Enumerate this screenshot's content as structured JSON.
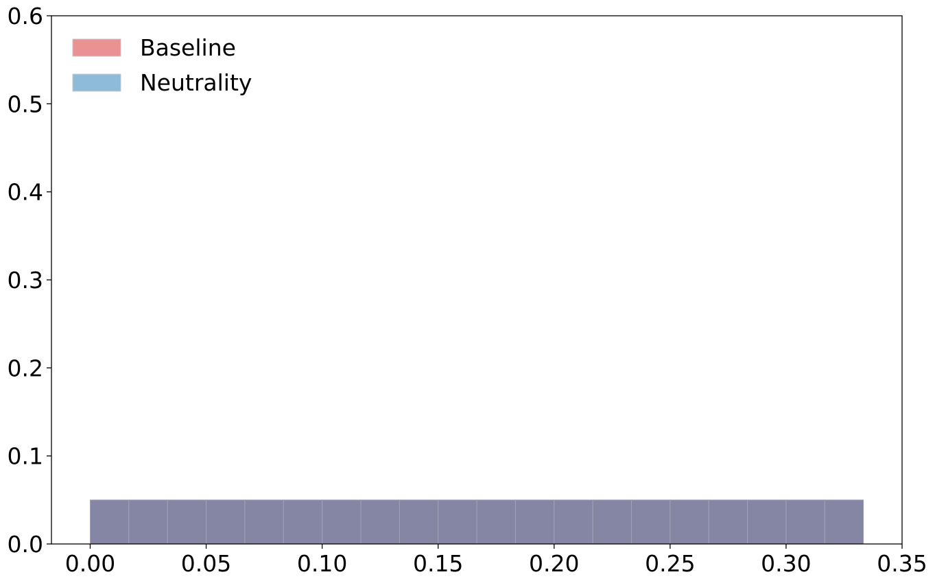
{
  "chart_data": {
    "type": "bar",
    "title": "",
    "xlabel": "",
    "ylabel": "",
    "xlim": [
      -0.0167,
      0.35
    ],
    "ylim": [
      0,
      0.6
    ],
    "xticks": [
      "0.00",
      "0.05",
      "0.10",
      "0.15",
      "0.20",
      "0.25",
      "0.30",
      "0.35"
    ],
    "yticks": [
      "0.0",
      "0.1",
      "0.2",
      "0.3",
      "0.4",
      "0.5",
      "0.6"
    ],
    "grid": false,
    "legend_position": "top-left",
    "bin_edges": [
      0.0,
      0.01667,
      0.03333,
      0.05,
      0.06667,
      0.08333,
      0.1,
      0.11667,
      0.13333,
      0.15,
      0.16667,
      0.18333,
      0.2,
      0.21667,
      0.23333,
      0.25,
      0.26667,
      0.28333,
      0.3,
      0.31667,
      0.33333
    ],
    "series": [
      {
        "name": "Baseline",
        "color": "#e36a6f",
        "values": [
          0.05,
          0.05,
          0.05,
          0.05,
          0.05,
          0.05,
          0.05,
          0.05,
          0.05,
          0.05,
          0.05,
          0.05,
          0.05,
          0.05,
          0.05,
          0.05,
          0.05,
          0.05,
          0.05,
          0.05
        ]
      },
      {
        "name": "Neutrality",
        "color": "#6aa3cf",
        "values": [
          0.05,
          0.05,
          0.05,
          0.05,
          0.05,
          0.05,
          0.05,
          0.05,
          0.05,
          0.05,
          0.05,
          0.05,
          0.05,
          0.05,
          0.05,
          0.05,
          0.05,
          0.05,
          0.05,
          0.05
        ]
      }
    ],
    "overlap_color": "#8586a3",
    "legend_colors": [
      "#ea9293",
      "#8fbbda"
    ]
  }
}
